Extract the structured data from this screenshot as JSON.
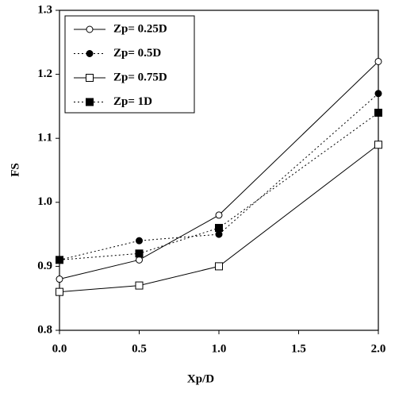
{
  "chart_data": {
    "type": "line",
    "x_label": "Xp/D",
    "y_label": "FS",
    "x": [
      0,
      0.5,
      1,
      2
    ],
    "series": [
      {
        "name": "Zp= 0.25D",
        "color": "#000000",
        "marker": "circle",
        "filled": false,
        "dash": "solid",
        "values": [
          0.88,
          0.91,
          0.98,
          1.22
        ]
      },
      {
        "name": "Zp= 0.5D",
        "color": "#000000",
        "marker": "circle",
        "filled": true,
        "dash": "dotted",
        "values": [
          0.91,
          0.94,
          0.95,
          1.17
        ]
      },
      {
        "name": "Zp= 0.75D",
        "color": "#000000",
        "marker": "square",
        "filled": false,
        "dash": "solid",
        "values": [
          0.86,
          0.87,
          0.9,
          1.09
        ]
      },
      {
        "name": "Zp= 1D",
        "color": "#000000",
        "marker": "square",
        "filled": true,
        "dash": "dotted",
        "values": [
          0.91,
          0.92,
          0.96,
          1.14
        ]
      }
    ],
    "xlim": [
      0,
      2
    ],
    "ylim": [
      0.8,
      1.3
    ],
    "xticks": [
      {
        "value": 0,
        "label": "0.0"
      },
      0.5,
      {
        "value": 1,
        "label": "1.0"
      },
      1.5,
      {
        "value": 2,
        "label": "2.0"
      }
    ],
    "yticks": [
      0.8,
      0.9,
      {
        "value": 1,
        "label": "1.0"
      },
      1.1,
      1.2,
      1.3
    ],
    "legend": "upper left",
    "grid": false
  }
}
